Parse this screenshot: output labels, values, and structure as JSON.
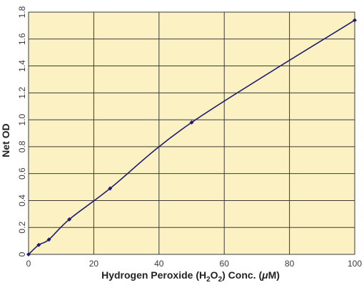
{
  "chart_data": {
    "type": "line",
    "title": "",
    "xlabel": {
      "prefix": "Hydrogen Peroxide (H",
      "sub1": "2",
      "mid": "O",
      "sub2": "2",
      "suffix": ") Conc. (",
      "mu": "μ",
      "unit": "M)"
    },
    "ylabel": "Net OD",
    "xlim": [
      0,
      100
    ],
    "ylim": [
      0,
      1.8
    ],
    "xticks": [
      {
        "value": 0,
        "label": "0"
      },
      {
        "value": 20,
        "label": "20"
      },
      {
        "value": 40,
        "label": "40"
      },
      {
        "value": 60,
        "label": "60"
      },
      {
        "value": 80,
        "label": "80"
      },
      {
        "value": 100,
        "label": "100"
      }
    ],
    "yticks": [
      {
        "value": 0,
        "label": "0"
      },
      {
        "value": 0.2,
        "label": "0.2"
      },
      {
        "value": 0.4,
        "label": "0.4"
      },
      {
        "value": 0.6,
        "label": "0.6"
      },
      {
        "value": 0.8,
        "label": "0.8"
      },
      {
        "value": 1.0,
        "label": "1.0"
      },
      {
        "value": 1.2,
        "label": "1.2"
      },
      {
        "value": 1.4,
        "label": "1.4"
      },
      {
        "value": 1.6,
        "label": "1.6"
      },
      {
        "value": 1.8,
        "label": "1.8"
      }
    ],
    "grid": true,
    "series": [
      {
        "x": [
          0,
          3.125,
          6.25,
          12.5,
          25,
          50,
          100
        ],
        "y": [
          0,
          0.07,
          0.11,
          0.26,
          0.49,
          0.98,
          1.74
        ]
      }
    ],
    "colors": {
      "plot_background": "#fcf1c2",
      "grid": "#3a3a3a",
      "line": "#1f1d6e",
      "marker": "#1f1d6e"
    }
  }
}
